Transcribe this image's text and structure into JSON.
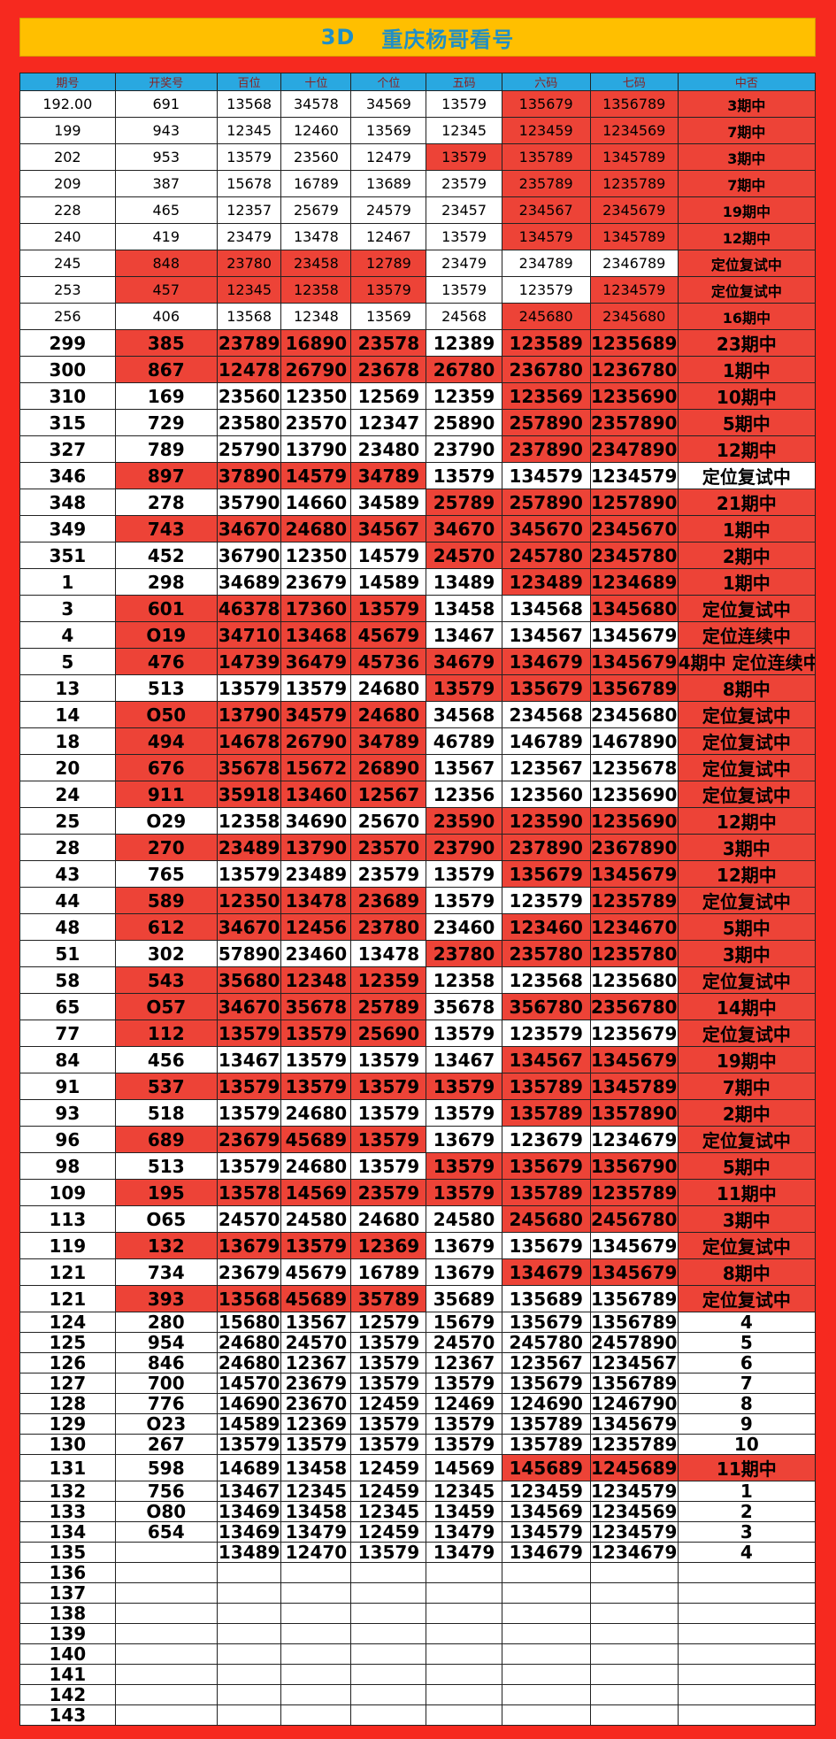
{
  "title": {
    "left": "3D",
    "right": "重庆杨哥看号"
  },
  "headers": [
    "期号",
    "开奖号",
    "百位",
    "十位",
    "个位",
    "五码",
    "六码",
    "七码",
    "中否"
  ],
  "rows": [
    {
      "c": [
        "192.00",
        "691",
        "13568",
        "34578",
        "34569",
        "13579",
        "135679",
        "1356789",
        "3期中"
      ],
      "r": [
        6,
        7,
        8
      ],
      "t": [],
      "s": 1
    },
    {
      "c": [
        "199",
        "943",
        "12345",
        "12460",
        "13569",
        "12345",
        "123459",
        "1234569",
        "7期中"
      ],
      "r": [
        6,
        7,
        8
      ],
      "t": [
        3,
        4
      ],
      "s": 1
    },
    {
      "c": [
        "202",
        "953",
        "13579",
        "23560",
        "12479",
        "13579",
        "135789",
        "1345789",
        "3期中"
      ],
      "r": [
        5,
        6,
        7,
        8
      ],
      "t": [
        2,
        3
      ],
      "s": 1
    },
    {
      "c": [
        "209",
        "387",
        "15678",
        "16789",
        "13689",
        "23579",
        "235789",
        "1235789",
        "7期中"
      ],
      "r": [
        6,
        7,
        8
      ],
      "t": [
        3
      ],
      "s": 1
    },
    {
      "c": [
        "228",
        "465",
        "12357",
        "25679",
        "24579",
        "23457",
        "234567",
        "2345679",
        "19期中"
      ],
      "r": [
        6,
        7,
        8
      ],
      "t": [
        3,
        4
      ],
      "s": 1
    },
    {
      "c": [
        "240",
        "419",
        "23479",
        "13478",
        "12467",
        "13579",
        "134579",
        "1345789",
        "12期中"
      ],
      "r": [
        6,
        7,
        8
      ],
      "t": [
        2,
        3
      ],
      "s": 1
    },
    {
      "c": [
        "245",
        "848",
        "23780",
        "23458",
        "12789",
        "23479",
        "234789",
        "2346789",
        "定位复试中"
      ],
      "r": [
        1,
        2,
        3,
        4,
        8
      ],
      "t": [
        6,
        7
      ],
      "s": 1
    },
    {
      "c": [
        "253",
        "457",
        "12345",
        "12358",
        "13579",
        "13579",
        "123579",
        "1234579",
        "定位复试中"
      ],
      "r": [
        1,
        2,
        3,
        4,
        7,
        8
      ],
      "t": [],
      "s": 1
    },
    {
      "c": [
        "256",
        "406",
        "13568",
        "12348",
        "13569",
        "24568",
        "245680",
        "2345680",
        "16期中"
      ],
      "r": [
        6,
        7,
        8
      ],
      "t": [
        4
      ],
      "s": 1
    },
    {
      "c": [
        "299",
        "385",
        "23789",
        "16890",
        "23578",
        "12389",
        "123589",
        "1235689",
        "23期中"
      ],
      "r": [
        1,
        2,
        3,
        4,
        6,
        7,
        8
      ],
      "t": [],
      "s": 2
    },
    {
      "c": [
        "300",
        "867",
        "12478",
        "26790",
        "23678",
        "26780",
        "236780",
        "1236780",
        "1期中"
      ],
      "r": [
        1,
        2,
        3,
        4,
        5,
        6,
        7,
        8
      ],
      "t": [],
      "s": 2
    },
    {
      "c": [
        "310",
        "169",
        "23560",
        "12350",
        "12569",
        "12359",
        "123569",
        "1235690",
        "10期中"
      ],
      "r": [
        6,
        7,
        8
      ],
      "t": [
        4
      ],
      "s": 2
    },
    {
      "c": [
        "315",
        "729",
        "23580",
        "23570",
        "12347",
        "25890",
        "257890",
        "2357890",
        "5期中"
      ],
      "r": [
        6,
        7,
        8
      ],
      "t": [
        3
      ],
      "s": 2
    },
    {
      "c": [
        "327",
        "789",
        "25790",
        "13790",
        "23480",
        "23790",
        "237890",
        "2347890",
        "12期中"
      ],
      "r": [
        6,
        7,
        8
      ],
      "t": [
        2
      ],
      "s": 2
    },
    {
      "c": [
        "346",
        "897",
        "37890",
        "14579",
        "34789",
        "13579",
        "134579",
        "1234579",
        "定位复试中"
      ],
      "r": [
        1,
        2,
        3,
        4
      ],
      "t": [],
      "s": 2,
      "sm": true
    },
    {
      "c": [
        "348",
        "278",
        "35790",
        "14660",
        "34589",
        "25789",
        "257890",
        "1257890",
        "21期中"
      ],
      "r": [
        5,
        6,
        7,
        8
      ],
      "t": [
        4
      ],
      "s": 2
    },
    {
      "c": [
        "349",
        "743",
        "34670",
        "24680",
        "34567",
        "34670",
        "345670",
        "2345670",
        "1期中"
      ],
      "r": [
        1,
        2,
        3,
        4,
        5,
        6,
        7,
        8
      ],
      "t": [],
      "s": 2
    },
    {
      "c": [
        "351",
        "452",
        "36790",
        "12350",
        "14579",
        "24570",
        "245780",
        "2345780",
        "2期中"
      ],
      "r": [
        5,
        6,
        7,
        8
      ],
      "t": [
        3
      ],
      "s": 2
    },
    {
      "c": [
        "1",
        "298",
        "34689",
        "23679",
        "14589",
        "13489",
        "123489",
        "1234689",
        "1期中"
      ],
      "r": [
        6,
        7,
        8
      ],
      "t": [
        3,
        4
      ],
      "s": 2
    },
    {
      "c": [
        "3",
        "601",
        "46378",
        "17360",
        "13579",
        "13458",
        "134568",
        "1345680",
        "定位复试中"
      ],
      "r": [
        1,
        2,
        3,
        4,
        7,
        8
      ],
      "t": [],
      "s": 2
    },
    {
      "c": [
        "4",
        "O19",
        "34710",
        "13468",
        "45679",
        "13467",
        "134567",
        "1345679",
        "定位连续中"
      ],
      "r": [
        1,
        2,
        3,
        4,
        8
      ],
      "t": [],
      "s": 2
    },
    {
      "c": [
        "5",
        "476",
        "14739",
        "36479",
        "45736",
        "34679",
        "134679",
        "1345679",
        "4期中  定位连续中"
      ],
      "r": [
        1,
        2,
        3,
        4,
        5,
        6,
        7,
        8
      ],
      "t": [],
      "s": 2,
      "tn": true
    },
    {
      "c": [
        "13",
        "513",
        "13579",
        "13579",
        "24680",
        "13579",
        "135679",
        "1356789",
        "8期中"
      ],
      "r": [
        5,
        6,
        7,
        8
      ],
      "t": [
        2,
        3
      ],
      "s": 2
    },
    {
      "c": [
        "14",
        "O50",
        "13790",
        "34579",
        "24680",
        "34568",
        "234568",
        "2345680",
        "定位复试中"
      ],
      "r": [
        1,
        2,
        3,
        4,
        8
      ],
      "t": [
        7
      ],
      "s": 2
    },
    {
      "c": [
        "18",
        "494",
        "14678",
        "26790",
        "34789",
        "46789",
        "146789",
        "1467890",
        "定位复试中"
      ],
      "r": [
        1,
        2,
        3,
        4,
        8
      ],
      "t": [
        5,
        6,
        7
      ],
      "s": 2
    },
    {
      "c": [
        "20",
        "676",
        "35678",
        "15672",
        "26890",
        "13567",
        "123567",
        "1235678",
        "定位复试中"
      ],
      "r": [
        1,
        2,
        3,
        4,
        8
      ],
      "t": [
        5,
        6,
        7
      ],
      "s": 2
    },
    {
      "c": [
        "24",
        "911",
        "35918",
        "13460",
        "12567",
        "12356",
        "123560",
        "1235690",
        "定位复试中"
      ],
      "r": [
        1,
        2,
        3,
        4,
        8
      ],
      "t": [
        7
      ],
      "s": 2
    },
    {
      "c": [
        "25",
        "O29",
        "12358",
        "34690",
        "25670",
        "23590",
        "123590",
        "1235690",
        "12期中"
      ],
      "r": [
        5,
        6,
        7,
        8
      ],
      "t": [],
      "s": 2
    },
    {
      "c": [
        "28",
        "270",
        "23489",
        "13790",
        "23570",
        "23790",
        "237890",
        "2367890",
        "3期中"
      ],
      "r": [
        1,
        2,
        3,
        4,
        5,
        6,
        7,
        8
      ],
      "t": [],
      "s": 2
    },
    {
      "c": [
        "43",
        "765",
        "13579",
        "23489",
        "23579",
        "13579",
        "135679",
        "1345679",
        "12期中"
      ],
      "r": [
        6,
        7,
        8
      ],
      "t": [
        2,
        4
      ],
      "s": 2
    },
    {
      "c": [
        "44",
        "589",
        "12350",
        "13478",
        "23689",
        "13579",
        "123579",
        "1235789",
        "定位复试中"
      ],
      "r": [
        1,
        2,
        3,
        4,
        7,
        8
      ],
      "t": [],
      "s": 2
    },
    {
      "c": [
        "48",
        "612",
        "34670",
        "12456",
        "23780",
        "23460",
        "123460",
        "1234670",
        "5期中"
      ],
      "r": [
        1,
        2,
        3,
        4,
        6,
        7,
        8
      ],
      "t": [],
      "s": 2
    },
    {
      "c": [
        "51",
        "302",
        "57890",
        "23460",
        "13478",
        "23780",
        "235780",
        "1235780",
        "3期中"
      ],
      "r": [
        5,
        6,
        7,
        8
      ],
      "t": [
        3
      ],
      "s": 2
    },
    {
      "c": [
        "58",
        "543",
        "35680",
        "12348",
        "12359",
        "12358",
        "123568",
        "1235680",
        "定位复试中"
      ],
      "r": [
        1,
        2,
        3,
        4,
        8
      ],
      "t": [],
      "s": 2
    },
    {
      "c": [
        "65",
        "O57",
        "34670",
        "35678",
        "25789",
        "35678",
        "356780",
        "2356780",
        "14期中"
      ],
      "r": [
        1,
        2,
        3,
        4,
        6,
        7,
        8
      ],
      "t": [],
      "s": 2
    },
    {
      "c": [
        "77",
        "112",
        "13579",
        "13579",
        "25690",
        "13579",
        "123579",
        "1235679",
        "定位复试中"
      ],
      "r": [
        1,
        2,
        3,
        4,
        8
      ],
      "t": [
        6,
        7
      ],
      "s": 2
    },
    {
      "c": [
        "84",
        "456",
        "13467",
        "13579",
        "13579",
        "13467",
        "134567",
        "1345679",
        "19期中"
      ],
      "r": [
        6,
        7,
        8
      ],
      "t": [
        2,
        3
      ],
      "s": 2
    },
    {
      "c": [
        "91",
        "537",
        "13579",
        "13579",
        "13579",
        "13579",
        "135789",
        "1345789",
        "7期中"
      ],
      "r": [
        1,
        2,
        3,
        4,
        5,
        6,
        7,
        8
      ],
      "t": [],
      "s": 2
    },
    {
      "c": [
        "93",
        "518",
        "13579",
        "24680",
        "13579",
        "13579",
        "135789",
        "1357890",
        "2期中"
      ],
      "r": [
        6,
        7,
        8
      ],
      "t": [
        2
      ],
      "s": 2
    },
    {
      "c": [
        "96",
        "689",
        "23679",
        "45689",
        "13579",
        "13679",
        "123679",
        "1234679",
        "定位复试中"
      ],
      "r": [
        1,
        2,
        3,
        4,
        8
      ],
      "t": [],
      "s": 2
    },
    {
      "c": [
        "98",
        "513",
        "13579",
        "24680",
        "13579",
        "13579",
        "135679",
        "1356790",
        "5期中"
      ],
      "r": [
        5,
        6,
        7,
        8
      ],
      "t": [
        2,
        4
      ],
      "s": 2
    },
    {
      "c": [
        "109",
        "195",
        "13578",
        "14569",
        "23579",
        "13579",
        "135789",
        "1235789",
        "11期中"
      ],
      "r": [
        1,
        2,
        3,
        4,
        5,
        6,
        7,
        8
      ],
      "t": [],
      "s": 2
    },
    {
      "c": [
        "113",
        "O65",
        "24570",
        "24580",
        "24680",
        "24580",
        "245680",
        "2456780",
        "3期中"
      ],
      "r": [
        6,
        7,
        8
      ],
      "t": [
        2
      ],
      "s": 2
    },
    {
      "c": [
        "119",
        "132",
        "13679",
        "13579",
        "12369",
        "13679",
        "135679",
        "1345679",
        "定位复试中"
      ],
      "r": [
        1,
        2,
        3,
        4,
        8
      ],
      "t": [],
      "s": 2
    },
    {
      "c": [
        "121",
        "734",
        "23679",
        "45679",
        "16789",
        "13679",
        "134679",
        "1345679",
        "8期中"
      ],
      "r": [
        6,
        7,
        8
      ],
      "t": [
        2
      ],
      "s": 2
    },
    {
      "c": [
        "121",
        "393",
        "13568",
        "45689",
        "35789",
        "35689",
        "135689",
        "1356789",
        "定位复试中"
      ],
      "r": [
        1,
        2,
        3,
        4,
        8
      ],
      "t": [
        5,
        6,
        7
      ],
      "s": 2
    },
    {
      "c": [
        "124",
        "280",
        "15680",
        "13567",
        "12579",
        "15679",
        "135679",
        "1356789",
        "4"
      ],
      "r": [],
      "t": [],
      "s": 3
    },
    {
      "c": [
        "125",
        "954",
        "24680",
        "24570",
        "13579",
        "24570",
        "245780",
        "2457890",
        "5"
      ],
      "r": [],
      "t": [
        3
      ],
      "s": 3
    },
    {
      "c": [
        "126",
        "846",
        "24680",
        "12367",
        "13579",
        "12367",
        "123567",
        "1234567",
        "6"
      ],
      "r": [],
      "t": [
        2
      ],
      "s": 3
    },
    {
      "c": [
        "127",
        "700",
        "14570",
        "23679",
        "13579",
        "13579",
        "135679",
        "1356789",
        "7"
      ],
      "r": [],
      "t": [
        1,
        2
      ],
      "s": 3
    },
    {
      "c": [
        "128",
        "776",
        "14690",
        "23670",
        "12459",
        "12469",
        "124690",
        "1246790",
        "8"
      ],
      "r": [],
      "t": [
        1,
        3,
        7
      ],
      "s": 3
    },
    {
      "c": [
        "129",
        "O23",
        "14589",
        "12369",
        "13579",
        "13579",
        "135789",
        "1345679",
        "9"
      ],
      "r": [],
      "t": [
        3,
        4
      ],
      "s": 3
    },
    {
      "c": [
        "130",
        "267",
        "13579",
        "13579",
        "13579",
        "13579",
        "135789",
        "1235789",
        "10"
      ],
      "r": [],
      "t": [
        4
      ],
      "s": 3
    },
    {
      "c": [
        "131",
        "598",
        "14689",
        "13458",
        "12459",
        "14569",
        "145689",
        "1245689",
        "11期中"
      ],
      "r": [
        6,
        7,
        8
      ],
      "t": [],
      "s": 2
    },
    {
      "c": [
        "132",
        "756",
        "13467",
        "12345",
        "12459",
        "12345",
        "123459",
        "1234579",
        "1"
      ],
      "r": [],
      "t": [
        2,
        3
      ],
      "s": 3
    },
    {
      "c": [
        "133",
        "O80",
        "13469",
        "13458",
        "12345",
        "13459",
        "134569",
        "1234569",
        "2"
      ],
      "r": [],
      "t": [
        1,
        3
      ],
      "s": 3
    },
    {
      "c": [
        "134",
        "654",
        "13469",
        "13479",
        "12459",
        "13479",
        "134579",
        "1234579",
        "3"
      ],
      "r": [],
      "t": [
        2,
        4
      ],
      "s": 3
    },
    {
      "c": [
        "135",
        "",
        "13489",
        "12470",
        "13579",
        "13479",
        "134679",
        "1234679",
        "4"
      ],
      "r": [],
      "t": [],
      "s": 3
    },
    {
      "c": [
        "136",
        "",
        "",
        "",
        "",
        "",
        "",
        "",
        ""
      ],
      "r": [],
      "t": [],
      "s": 3
    },
    {
      "c": [
        "137",
        "",
        "",
        "",
        "",
        "",
        "",
        "",
        ""
      ],
      "r": [],
      "t": [],
      "s": 3
    },
    {
      "c": [
        "138",
        "",
        "",
        "",
        "",
        "",
        "",
        "",
        ""
      ],
      "r": [],
      "t": [],
      "s": 3
    },
    {
      "c": [
        "139",
        "",
        "",
        "",
        "",
        "",
        "",
        "",
        ""
      ],
      "r": [],
      "t": [],
      "s": 3
    },
    {
      "c": [
        "140",
        "",
        "",
        "",
        "",
        "",
        "",
        "",
        ""
      ],
      "r": [],
      "t": [],
      "s": 3
    },
    {
      "c": [
        "141",
        "",
        "",
        "",
        "",
        "",
        "",
        "",
        ""
      ],
      "r": [],
      "t": [],
      "s": 3
    },
    {
      "c": [
        "142",
        "",
        "",
        "",
        "",
        "",
        "",
        "",
        ""
      ],
      "r": [],
      "t": [],
      "s": 3
    },
    {
      "c": [
        "143",
        "",
        "",
        "",
        "",
        "",
        "",
        "",
        ""
      ],
      "r": [],
      "t": [],
      "s": 3
    }
  ]
}
